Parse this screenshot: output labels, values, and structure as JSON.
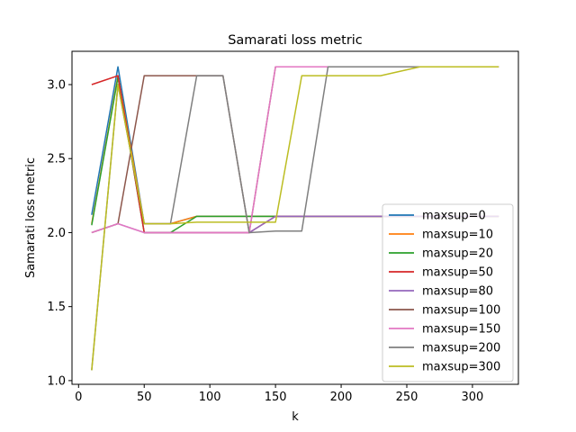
{
  "chart_data": {
    "type": "line",
    "title": "Samarati loss metric",
    "xlabel": "k",
    "ylabel": "Samarati loss metric",
    "xlim": [
      -5,
      335
    ],
    "ylim": [
      0.975,
      3.225
    ],
    "xticks": [
      0,
      50,
      100,
      150,
      200,
      250,
      300
    ],
    "yticks": [
      1.0,
      1.5,
      2.0,
      2.5,
      3.0
    ],
    "ytick_labels": [
      "1.0",
      "1.5",
      "2.0",
      "2.5",
      "3.0"
    ],
    "grid": false,
    "legend_position": "lower-right",
    "x": [
      10,
      30,
      50,
      70,
      90,
      110,
      130,
      150,
      170,
      190,
      210,
      230,
      260,
      280,
      300,
      320
    ],
    "series": [
      {
        "name": "maxsup=0",
        "color": "#1f77b4",
        "values": [
          2.12,
          3.12,
          2.06,
          2.06,
          2.11,
          2.11,
          2.11,
          2.11,
          2.11,
          2.11,
          2.11,
          2.11,
          2.11,
          2.11,
          2.11,
          2.11
        ]
      },
      {
        "name": "maxsup=10",
        "color": "#ff7f0e",
        "values": [
          2.06,
          3.06,
          2.06,
          2.06,
          2.11,
          2.11,
          2.11,
          2.11,
          2.11,
          2.11,
          2.11,
          2.11,
          2.11,
          2.11,
          2.11,
          2.11
        ]
      },
      {
        "name": "maxsup=20",
        "color": "#2ca02c",
        "values": [
          2.05,
          3.05,
          2.0,
          2.0,
          2.11,
          2.11,
          2.11,
          2.11,
          2.11,
          2.11,
          2.11,
          2.11,
          2.11,
          2.11,
          2.11,
          2.11
        ]
      },
      {
        "name": "maxsup=50",
        "color": "#d62728",
        "values": [
          3.0,
          3.06,
          2.0,
          2.0,
          2.0,
          2.0,
          2.0,
          2.11,
          2.11,
          2.11,
          2.11,
          2.11,
          2.11,
          2.11,
          2.11,
          2.11
        ]
      },
      {
        "name": "maxsup=80",
        "color": "#9467bd",
        "values": [
          2.0,
          2.06,
          2.0,
          2.0,
          2.0,
          2.0,
          2.0,
          2.11,
          2.11,
          2.11,
          2.11,
          2.11,
          2.11,
          2.11,
          2.11,
          2.11
        ]
      },
      {
        "name": "maxsup=100",
        "color": "#8c564b",
        "values": [
          2.0,
          2.06,
          3.06,
          3.06,
          3.06,
          3.06,
          2.0,
          3.12,
          3.12,
          3.12,
          3.12,
          3.12,
          3.12,
          3.12,
          3.12,
          3.12
        ]
      },
      {
        "name": "maxsup=150",
        "color": "#e377c2",
        "values": [
          2.0,
          2.06,
          2.0,
          2.0,
          2.0,
          2.0,
          2.0,
          3.12,
          3.12,
          3.12,
          3.12,
          3.12,
          3.12,
          3.12,
          3.12,
          3.12
        ]
      },
      {
        "name": "maxsup=200",
        "color": "#7f7f7f",
        "values": [
          1.07,
          3.0,
          2.06,
          2.06,
          3.06,
          3.06,
          2.0,
          2.01,
          2.01,
          3.12,
          3.12,
          3.12,
          3.12,
          3.12,
          3.12,
          3.12
        ]
      },
      {
        "name": "maxsup=300",
        "color": "#bcbd22",
        "values": [
          1.07,
          3.0,
          2.06,
          2.06,
          2.07,
          2.07,
          2.07,
          2.07,
          3.06,
          3.06,
          3.06,
          3.06,
          3.12,
          3.12,
          3.12,
          3.12
        ]
      }
    ]
  }
}
